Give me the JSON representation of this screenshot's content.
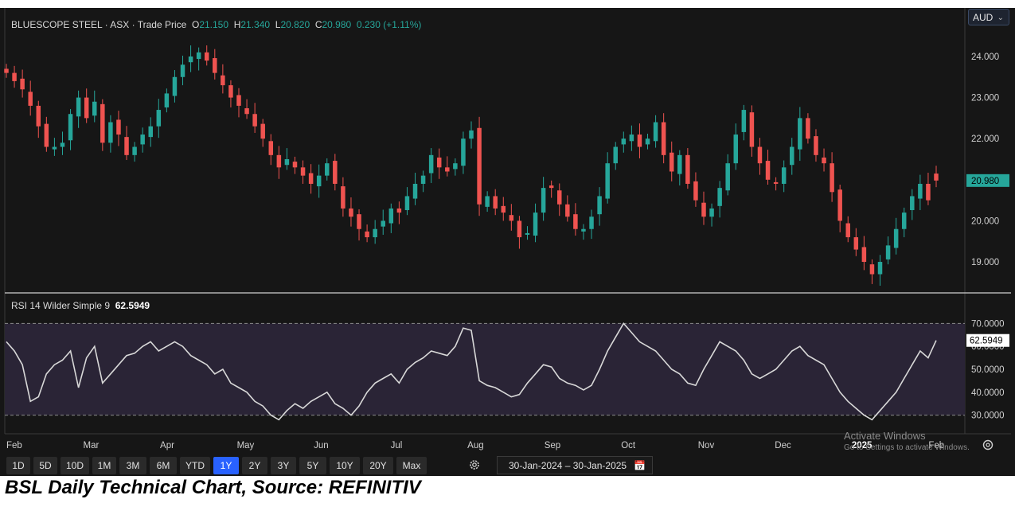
{
  "header": {
    "name": "BLUESCOPE STEEL · ASX · Trade Price",
    "o_label": "O",
    "o_value": "21.150",
    "h_label": "H",
    "h_value": "21.340",
    "l_label": "L",
    "l_value": "20.820",
    "c_label": "C",
    "c_value": "20.980",
    "change": "0.230 (+1.11%)"
  },
  "currency": {
    "label": "AUD"
  },
  "rsi_legend": {
    "label": "RSI 14 Wilder Simple 9",
    "value": "62.5949"
  },
  "price_axis": {
    "ticks": [
      "24.000",
      "23.000",
      "22.000",
      "21.000",
      "20.000",
      "19.000"
    ],
    "last_label": "20.980"
  },
  "rsi_axis": {
    "ticks": [
      "70.0000",
      "60.0000",
      "50.0000",
      "40.0000",
      "30.0000"
    ],
    "last_label": "62.5949"
  },
  "time_axis": {
    "labels": [
      "Feb",
      "Mar",
      "Apr",
      "May",
      "Jun",
      "Jul",
      "Aug",
      "Sep",
      "Oct",
      "Nov",
      "Dec",
      "2025",
      "Feb"
    ]
  },
  "ranges": {
    "buttons": [
      "1D",
      "5D",
      "10D",
      "1M",
      "3M",
      "6M",
      "YTD",
      "1Y",
      "2Y",
      "3Y",
      "5Y",
      "10Y",
      "20Y",
      "Max"
    ],
    "active": "1Y"
  },
  "date_range": {
    "text": "30-Jan-2024  –  30-Jan-2025"
  },
  "watermark": {
    "line1": "Activate Windows",
    "line2": "Go to Settings to activate Windows."
  },
  "caption": "BSL Daily Technical Chart, Source: REFINITIV",
  "colors": {
    "up": "#26a69a",
    "down": "#ef5350",
    "rsi_line": "#d8d8d8",
    "rsi_band": "#2a2436",
    "active_range": "#2962ff"
  },
  "chart_data": [
    {
      "type": "candlestick",
      "title": "BLUESCOPE STEEL · ASX · Trade Price",
      "currency": "AUD",
      "x_range": [
        "30-Jan-2024",
        "30-Jan-2025"
      ],
      "x_ticks": [
        "Feb",
        "Mar",
        "Apr",
        "May",
        "Jun",
        "Jul",
        "Aug",
        "Sep",
        "Oct",
        "Nov",
        "Dec",
        "2025",
        "Feb"
      ],
      "ylim": [
        18.4,
        24.6
      ],
      "y_ticks": [
        24.0,
        23.0,
        22.0,
        21.0,
        20.0,
        19.0
      ],
      "last": {
        "open": 21.15,
        "high": 21.34,
        "low": 20.82,
        "close": 20.98,
        "change": 0.23,
        "change_pct": 1.11
      },
      "series": [
        {
          "name": "close",
          "values": [
            23.6,
            23.4,
            23.2,
            22.8,
            22.3,
            21.8,
            21.8,
            21.9,
            22.6,
            23.0,
            22.5,
            22.9,
            21.9,
            22.4,
            22.1,
            21.6,
            21.8,
            22.1,
            22.3,
            22.7,
            23.1,
            23.5,
            23.8,
            24.0,
            24.1,
            23.9,
            23.6,
            23.3,
            23.0,
            22.8,
            22.6,
            22.3,
            22.0,
            21.6,
            21.3,
            21.5,
            21.3,
            21.1,
            20.9,
            21.1,
            21.4,
            20.9,
            20.3,
            20.1,
            19.8,
            19.6,
            19.8,
            20.0,
            20.3,
            20.2,
            20.6,
            20.9,
            21.1,
            21.6,
            21.3,
            21.2,
            21.4,
            22.0,
            22.2,
            20.4,
            20.6,
            20.3,
            20.2,
            20.0,
            19.6,
            19.7,
            20.2,
            20.8,
            20.8,
            20.4,
            20.1,
            19.8,
            19.8,
            20.1,
            20.6,
            21.4,
            21.8,
            22.0,
            22.1,
            21.8,
            22.0,
            22.4,
            21.6,
            21.2,
            21.6,
            20.9,
            20.5,
            20.1,
            20.3,
            20.8,
            21.4,
            22.1,
            22.7,
            21.8,
            21.4,
            21.0,
            20.9,
            21.3,
            21.8,
            22.5,
            22.0,
            21.6,
            21.4,
            20.7,
            20.0,
            19.6,
            19.3,
            19.0,
            18.7,
            19.0,
            19.4,
            19.8,
            20.2,
            20.6,
            20.9,
            20.5,
            20.98
          ]
        },
        {
          "name": "RSI 14 Wilder Simple 9",
          "ylim": [
            25,
            75
          ],
          "y_ticks": [
            70.0,
            60.0,
            50.0,
            40.0,
            30.0
          ],
          "overbought": 70.0,
          "oversold": 30.0,
          "last_value": 62.5949,
          "values": [
            62,
            58,
            52,
            36,
            38,
            48,
            52,
            54,
            58,
            42,
            55,
            60,
            44,
            48,
            52,
            56,
            57,
            60,
            62,
            58,
            60,
            62,
            60,
            56,
            54,
            52,
            48,
            50,
            44,
            42,
            40,
            36,
            34,
            30,
            28,
            32,
            35,
            33,
            36,
            38,
            40,
            35,
            33,
            30,
            34,
            40,
            44,
            46,
            48,
            44,
            50,
            53,
            55,
            58,
            57,
            56,
            60,
            68,
            67,
            45,
            43,
            42,
            40,
            38,
            39,
            44,
            48,
            52,
            51,
            46,
            44,
            43,
            41,
            43,
            50,
            58,
            64,
            70,
            66,
            62,
            60,
            58,
            54,
            50,
            48,
            44,
            43,
            50,
            56,
            62,
            60,
            58,
            54,
            48,
            46,
            48,
            50,
            54,
            58,
            60,
            56,
            54,
            52,
            46,
            40,
            36,
            33,
            30,
            28,
            32,
            36,
            40,
            46,
            52,
            58,
            55,
            62.5949
          ]
        }
      ]
    }
  ]
}
